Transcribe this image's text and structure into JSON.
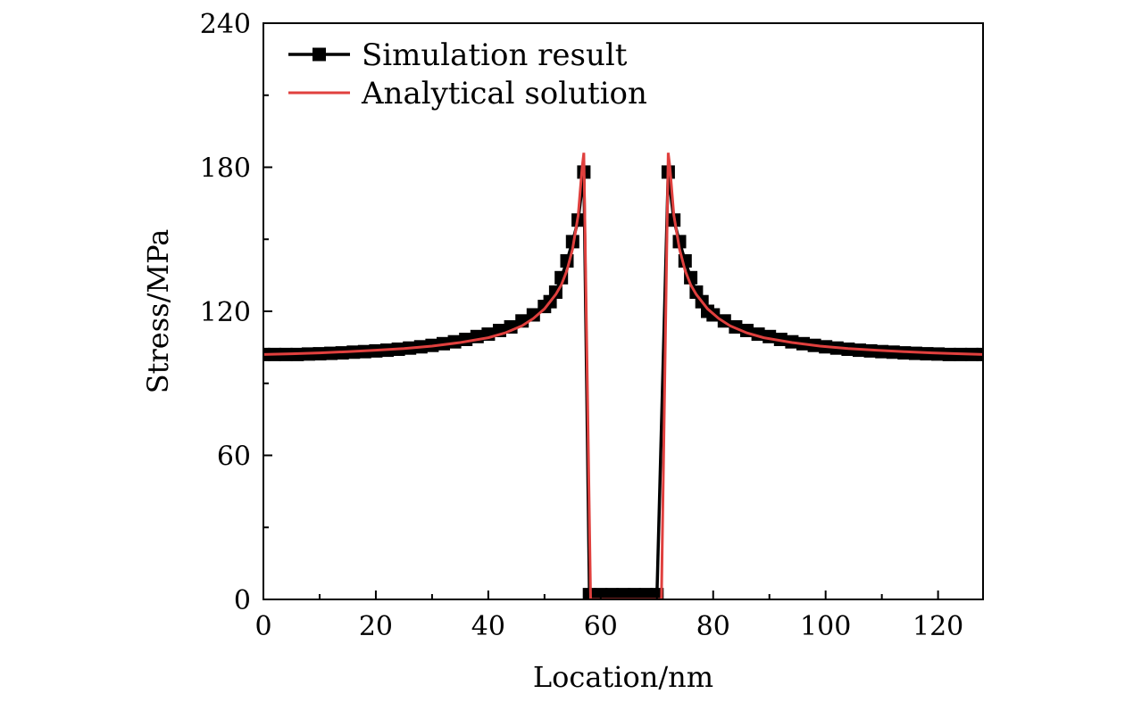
{
  "chart_data": {
    "type": "line",
    "xlabel": "Location/nm",
    "ylabel": "Stress/MPa",
    "xlim": [
      0,
      128
    ],
    "ylim": [
      0,
      240
    ],
    "x_ticks": [
      0,
      20,
      40,
      60,
      80,
      100,
      120
    ],
    "y_ticks": [
      0,
      60,
      120,
      180,
      240
    ],
    "grid": false,
    "legend_position": "top-left",
    "series": [
      {
        "name": "Simulation result",
        "color": "#000000",
        "marker": "square",
        "points": [
          [
            0,
            102
          ],
          [
            2,
            102
          ],
          [
            4,
            102
          ],
          [
            6,
            102
          ],
          [
            8,
            102.2
          ],
          [
            10,
            102.3
          ],
          [
            12,
            102.5
          ],
          [
            14,
            102.7
          ],
          [
            16,
            103
          ],
          [
            18,
            103.2
          ],
          [
            20,
            103.5
          ],
          [
            22,
            103.8
          ],
          [
            24,
            104.2
          ],
          [
            26,
            104.7
          ],
          [
            28,
            105.2
          ],
          [
            30,
            105.8
          ],
          [
            32,
            106.5
          ],
          [
            34,
            107.3
          ],
          [
            36,
            108.3
          ],
          [
            38,
            109.5
          ],
          [
            40,
            110.5
          ],
          [
            42,
            112
          ],
          [
            44,
            113.5
          ],
          [
            46,
            116
          ],
          [
            48,
            118.5
          ],
          [
            50,
            122
          ],
          [
            51,
            124
          ],
          [
            52,
            128
          ],
          [
            53,
            134
          ],
          [
            54,
            141
          ],
          [
            55,
            149
          ],
          [
            56,
            158
          ],
          [
            57,
            178
          ],
          [
            58,
            2
          ],
          [
            60,
            2
          ],
          [
            62,
            2
          ],
          [
            64,
            2
          ],
          [
            66,
            2
          ],
          [
            68,
            2
          ],
          [
            70,
            2
          ],
          [
            72,
            178
          ],
          [
            73,
            158
          ],
          [
            74,
            149
          ],
          [
            75,
            141
          ],
          [
            76,
            134
          ],
          [
            77,
            128
          ],
          [
            78,
            124
          ],
          [
            79,
            120
          ],
          [
            80,
            118.5
          ],
          [
            82,
            116
          ],
          [
            84,
            113.5
          ],
          [
            86,
            112
          ],
          [
            88,
            110.5
          ],
          [
            90,
            109.5
          ],
          [
            92,
            108.3
          ],
          [
            94,
            107.3
          ],
          [
            96,
            106.5
          ],
          [
            98,
            105.8
          ],
          [
            100,
            105.2
          ],
          [
            102,
            104.7
          ],
          [
            104,
            104.2
          ],
          [
            106,
            103.8
          ],
          [
            108,
            103.5
          ],
          [
            110,
            103.2
          ],
          [
            112,
            103
          ],
          [
            114,
            102.7
          ],
          [
            116,
            102.5
          ],
          [
            118,
            102.3
          ],
          [
            120,
            102.2
          ],
          [
            122,
            102
          ],
          [
            124,
            102
          ],
          [
            126,
            102
          ],
          [
            128,
            102
          ]
        ]
      },
      {
        "name": "Analytical solution",
        "color": "#e0403e",
        "marker": "none",
        "points": [
          [
            0,
            102
          ],
          [
            5,
            102.3
          ],
          [
            10,
            102.7
          ],
          [
            15,
            103.2
          ],
          [
            20,
            103.8
          ],
          [
            25,
            104.5
          ],
          [
            30,
            105.5
          ],
          [
            35,
            107
          ],
          [
            40,
            109
          ],
          [
            43,
            111
          ],
          [
            46,
            114
          ],
          [
            48,
            117
          ],
          [
            50,
            121
          ],
          [
            52,
            127
          ],
          [
            53,
            131
          ],
          [
            54,
            137
          ],
          [
            55,
            146
          ],
          [
            56,
            160
          ],
          [
            56.7,
            180
          ],
          [
            57,
            186
          ],
          [
            58.2,
            0
          ],
          [
            70.8,
            0
          ],
          [
            72,
            186
          ],
          [
            72.3,
            180
          ],
          [
            73,
            160
          ],
          [
            74,
            146
          ],
          [
            75,
            137
          ],
          [
            76,
            131
          ],
          [
            77,
            127
          ],
          [
            79,
            121
          ],
          [
            81,
            117
          ],
          [
            83,
            114
          ],
          [
            86,
            111
          ],
          [
            89,
            109
          ],
          [
            94,
            107
          ],
          [
            99,
            105.5
          ],
          [
            104,
            104.5
          ],
          [
            109,
            103.8
          ],
          [
            114,
            103.2
          ],
          [
            119,
            102.7
          ],
          [
            124,
            102.3
          ],
          [
            128,
            102
          ]
        ]
      }
    ]
  }
}
